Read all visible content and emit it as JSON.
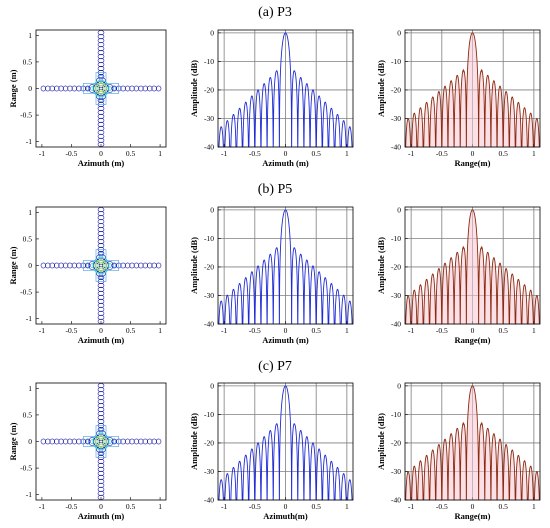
{
  "colors": {
    "azimuth_line": "#1f2bd6",
    "range_line": "#8b2a10",
    "range_background": "#f7c9d3",
    "grid": "#7f7f7f",
    "contour_outer": "#1a1aa6",
    "contour_mid": "#3fa0e8",
    "contour_inner": "#2cc8c8",
    "contour_core": "#a6e84a"
  },
  "rows": [
    {
      "title": "(a) P3",
      "contour": {
        "type": "contour",
        "xlabel": "Azimuth (m)",
        "ylabel": "Range (m)",
        "xlim": [
          -1.1,
          1.1
        ],
        "ylim": [
          -1.1,
          1.1
        ],
        "xticks": [
          "-1",
          "-0.5",
          "0",
          "0.5",
          "1"
        ],
        "yticks": [
          "1",
          "0.5",
          "0",
          "-0.5",
          "-1"
        ],
        "peak": [
          0,
          0
        ],
        "grid": false
      },
      "azimuth_profile": {
        "type": "line",
        "xlabel": "Azimuth (m)",
        "ylabel": "Amplitude (dB)",
        "xlim": [
          -1.1,
          1.1
        ],
        "ylim": [
          -40,
          1
        ],
        "xticks": [
          "-1",
          "-0.5",
          "0",
          "0.5",
          "1"
        ],
        "yticks": [
          "0",
          "-10",
          "-20",
          "-30",
          "-40"
        ],
        "peak_db": 0,
        "first_sidelobe_db": -13.5,
        "lobe_width": 0.1,
        "far_sidelobe_db": -34,
        "grid": true
      },
      "range_profile": {
        "type": "line",
        "xlabel": "Range(m)",
        "ylabel": "Amplitude (dB)",
        "xlim": [
          -1.1,
          1.1
        ],
        "ylim": [
          -40,
          1
        ],
        "xticks": [
          "-1",
          "-0.5",
          "0",
          "0.5",
          "1"
        ],
        "yticks": [
          "0",
          "-10",
          "-20",
          "-30",
          "-40"
        ],
        "peak_db": 0,
        "first_sidelobe_db": -13,
        "lobe_width": 0.1,
        "far_sidelobe_db": -31,
        "grid": true
      }
    },
    {
      "title": "(b) P5",
      "contour": {
        "type": "contour",
        "xlabel": "Azimuth (m)",
        "ylabel": "Range (m)",
        "xlim": [
          -1.1,
          1.1
        ],
        "ylim": [
          -1.1,
          1.1
        ],
        "xticks": [
          "-1",
          "-0.5",
          "0",
          "0.5",
          "1"
        ],
        "yticks": [
          "1",
          "0.5",
          "0",
          "-0.5",
          "-1"
        ],
        "peak": [
          0,
          0
        ],
        "grid": false
      },
      "azimuth_profile": {
        "type": "line",
        "xlabel": "Azimuth (m)",
        "ylabel": "Amplitude (dB)",
        "xlim": [
          -1.1,
          1.1
        ],
        "ylim": [
          -40,
          1
        ],
        "xticks": [
          "-1",
          "-0.5",
          "0",
          "0.5",
          "1"
        ],
        "yticks": [
          "0",
          "-10",
          "-20",
          "-30",
          "-40"
        ],
        "peak_db": 0,
        "first_sidelobe_db": -13.5,
        "lobe_width": 0.1,
        "far_sidelobe_db": -33,
        "grid": true
      },
      "range_profile": {
        "type": "line",
        "xlabel": "Range(m)",
        "ylabel": "Amplitude (dB)",
        "xlim": [
          -1.1,
          1.1
        ],
        "ylim": [
          -40,
          1
        ],
        "xticks": [
          "-1",
          "-0.5",
          "0",
          "0.5",
          "1"
        ],
        "yticks": [
          "0",
          "-10",
          "-20",
          "-30",
          "-40"
        ],
        "peak_db": 0,
        "first_sidelobe_db": -13,
        "lobe_width": 0.1,
        "far_sidelobe_db": -31,
        "grid": true
      }
    },
    {
      "title": "(c) P7",
      "contour": {
        "type": "contour",
        "xlabel": "Azimuth (m)",
        "ylabel": "Range (m)",
        "xlim": [
          -1.1,
          1.1
        ],
        "ylim": [
          -1.1,
          1.1
        ],
        "xticks": [
          "-1",
          "-0.5",
          "0",
          "0.5",
          "1"
        ],
        "yticks": [
          "1",
          "0.5",
          "0",
          "-0.5",
          "-1"
        ],
        "peak": [
          0,
          0
        ],
        "grid": false
      },
      "azimuth_profile": {
        "type": "line",
        "xlabel": "Azimuth(m)",
        "ylabel": "Amplitude (dB)",
        "xlim": [
          -1.1,
          1.1
        ],
        "ylim": [
          -40,
          1
        ],
        "xticks": [
          "-1",
          "-0.5",
          "0",
          "0.5",
          "1"
        ],
        "yticks": [
          "0",
          "-10",
          "-20",
          "-30",
          "-40"
        ],
        "peak_db": 0,
        "first_sidelobe_db": -13.5,
        "lobe_width": 0.1,
        "far_sidelobe_db": -34,
        "grid": true
      },
      "range_profile": {
        "type": "line",
        "xlabel": "Range(m)",
        "ylabel": "Amplitude (dB)",
        "xlim": [
          -1.1,
          1.1
        ],
        "ylim": [
          -40,
          1
        ],
        "xticks": [
          "-1",
          "-0.5",
          "0",
          "0.5",
          "1"
        ],
        "yticks": [
          "0",
          "-10",
          "-20",
          "-30",
          "-40"
        ],
        "peak_db": 0,
        "first_sidelobe_db": -13,
        "lobe_width": 0.1,
        "far_sidelobe_db": -31,
        "grid": true
      }
    }
  ]
}
